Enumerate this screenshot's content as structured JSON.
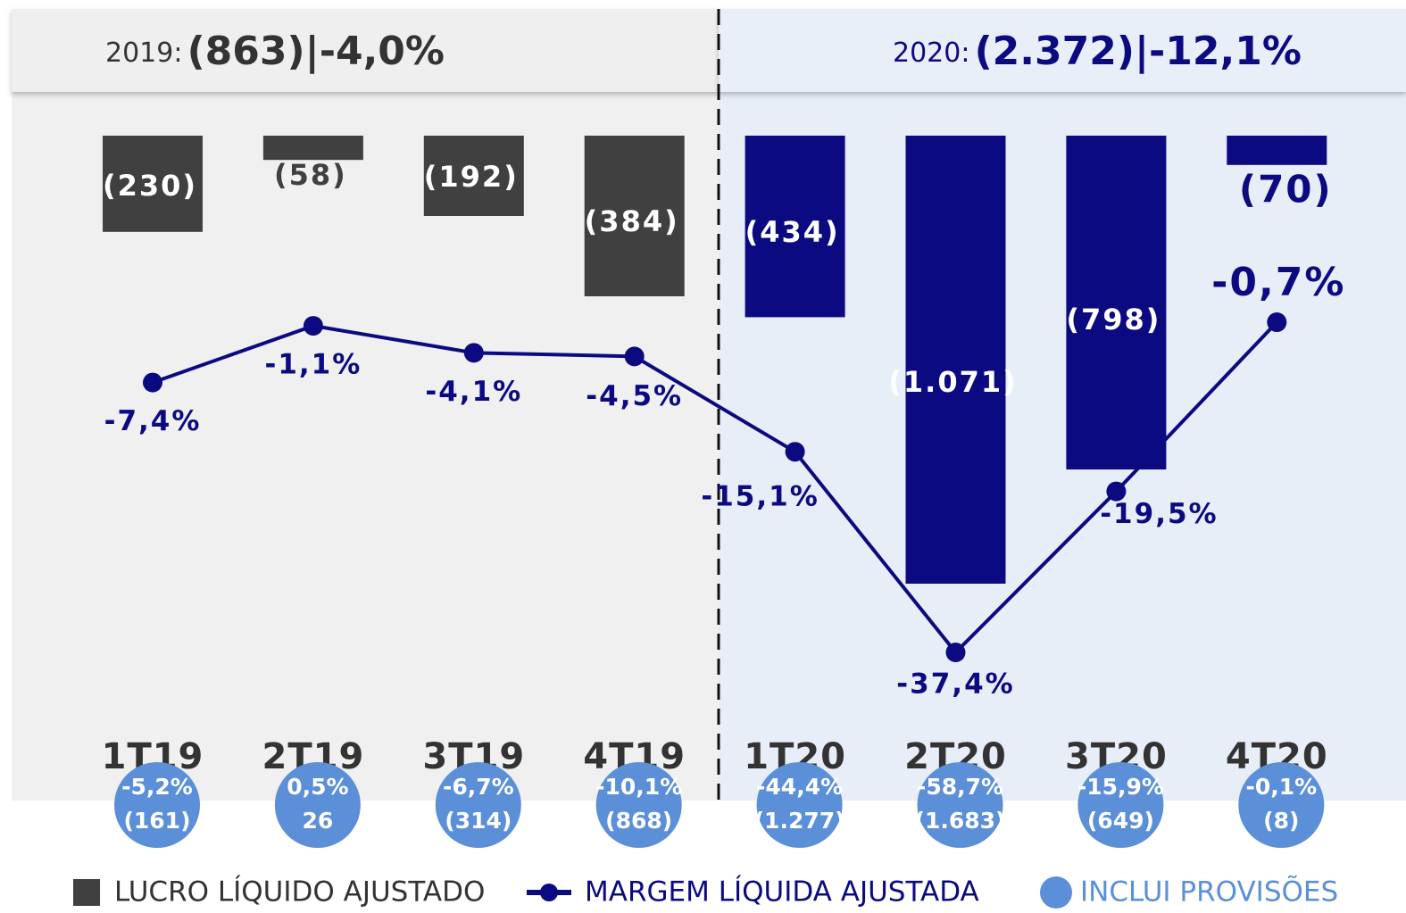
{
  "chart_data": {
    "type": "bar_line",
    "summaries": [
      {
        "label": "2019:",
        "value": -863,
        "value_label": "(863)",
        "separator": "|",
        "margin": -4.0,
        "margin_label": "-4,0%"
      },
      {
        "label": "2020:",
        "value": -2372,
        "value_label": "(2.372)",
        "separator": "|",
        "margin": -12.1,
        "margin_label": "-12,1%"
      }
    ],
    "categories": [
      "1T19",
      "2T19",
      "3T19",
      "4T19",
      "1T20",
      "2T20",
      "3T20",
      "4T20"
    ],
    "series": [
      {
        "name": "LUCRO LÍQUIDO AJUSTADO",
        "type": "bar",
        "colors": [
          "#404040",
          "#404040",
          "#404040",
          "#404040",
          "#0c0a80",
          "#0c0a80",
          "#0c0a80",
          "#0c0a80"
        ],
        "values": [
          -230,
          -58,
          -192,
          -384,
          -434,
          -1071,
          -798,
          -70
        ],
        "value_labels": [
          "(230)",
          "(58)",
          "(192)",
          "(384)",
          "(434)",
          "(1.071)",
          "(798)",
          "(70)"
        ]
      },
      {
        "name": "MARGEM LÍQUIDA AJUSTADA",
        "type": "line",
        "color": "#0c0a80",
        "values": [
          -7.4,
          -1.1,
          -4.1,
          -4.5,
          -15.1,
          -37.4,
          -19.5,
          -0.7
        ],
        "value_labels": [
          "-7,4%",
          "-1,1%",
          "-4,1%",
          "-4,5%",
          "-15,1%",
          "-37,4%",
          "-19,5%",
          "-0,7%"
        ]
      },
      {
        "name": "INCLUI PROVISÕES",
        "type": "circle",
        "color": "#5b8fd8",
        "values": [
          -5.2,
          0.5,
          -6.7,
          -10.1,
          -44.4,
          -58.7,
          -15.9,
          -0.1
        ],
        "value_labels": [
          "-5,2%",
          "0,5%",
          "-6,7%",
          "-10,1%",
          "-44,4%",
          "-58,7%",
          "-15,9%",
          "-0,1%"
        ],
        "amounts": [
          -161,
          26,
          -314,
          -868,
          -1277,
          -1683,
          -649,
          -8
        ],
        "amount_labels": [
          "(161)",
          "26",
          "(314)",
          "(868)",
          "(1.277)",
          "(1.683)",
          "(649)",
          "(8)"
        ]
      }
    ]
  }
}
